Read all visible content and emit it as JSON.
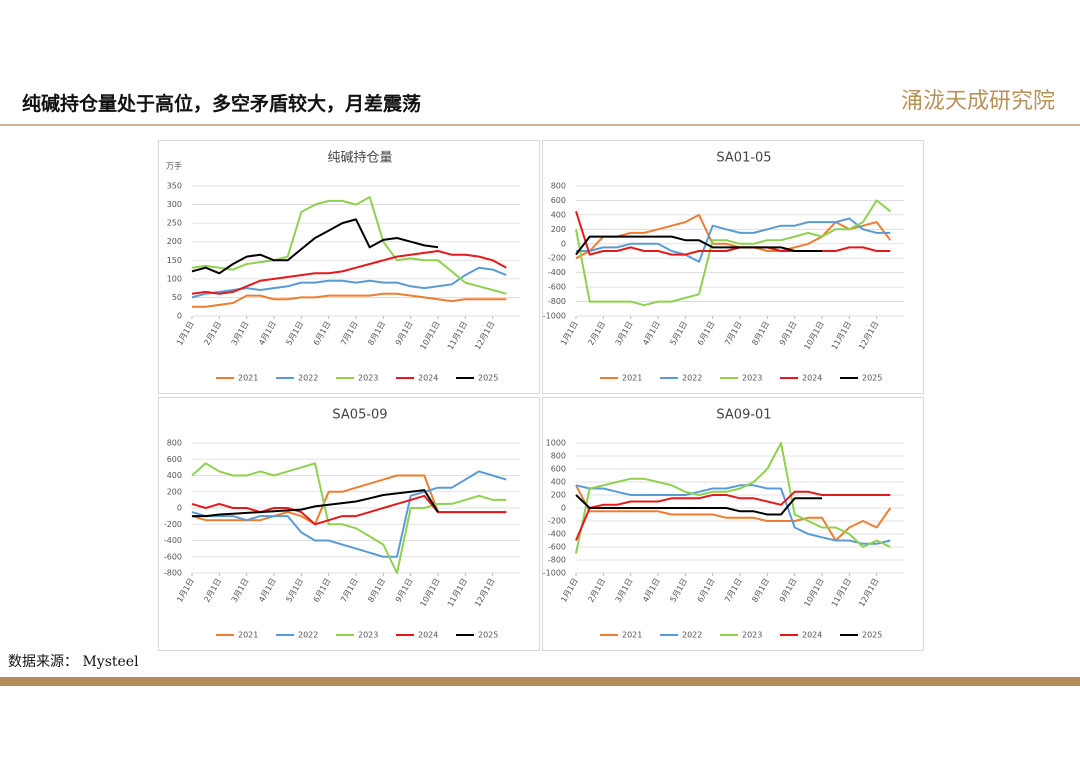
{
  "header": {
    "title": "纯碱持仓量处于高位，多空矛盾较大，月差震荡",
    "logo": "涌泷天成研究院"
  },
  "source": "数据来源： Mysteel",
  "chart_data": [
    {
      "type": "line",
      "title": "纯碱持仓量",
      "ylabel": "万手",
      "x": [
        1,
        1.5,
        2,
        2.5,
        3,
        3.5,
        4,
        4.5,
        5,
        5.5,
        6,
        6.5,
        7,
        7.5,
        8,
        8.5,
        9,
        9.5,
        10,
        10.5,
        11,
        11.5,
        12,
        12.5
      ],
      "xlim": [
        1,
        13
      ],
      "xticks": [
        {
          "value": 1,
          "label": "1月1日"
        },
        {
          "value": 2,
          "label": "2月1日"
        },
        {
          "value": 3,
          "label": "3月1日"
        },
        {
          "value": 4,
          "label": "4月1日"
        },
        {
          "value": 5,
          "label": "5月1日"
        },
        {
          "value": 6,
          "label": "6月1日"
        },
        {
          "value": 7,
          "label": "7月1日"
        },
        {
          "value": 8,
          "label": "8月1日"
        },
        {
          "value": 9,
          "label": "9月1日"
        },
        {
          "value": 10,
          "label": "10月1日"
        },
        {
          "value": 11,
          "label": "11月1日"
        },
        {
          "value": 12,
          "label": "12月1日"
        }
      ],
      "ylim": [
        0,
        350
      ],
      "yticks": [
        0,
        50,
        100,
        150,
        200,
        250,
        300,
        350
      ],
      "grid": true,
      "series": [
        {
          "name": "2021",
          "color": "#ed7d31",
          "values": [
            25,
            25,
            30,
            35,
            55,
            55,
            45,
            45,
            50,
            50,
            55,
            55,
            55,
            55,
            60,
            60,
            55,
            50,
            45,
            40,
            45,
            45,
            45,
            45
          ]
        },
        {
          "name": "2022",
          "color": "#5b9bd5",
          "values": [
            50,
            60,
            65,
            70,
            75,
            70,
            75,
            80,
            90,
            90,
            95,
            95,
            90,
            95,
            90,
            90,
            80,
            75,
            80,
            85,
            110,
            130,
            125,
            110
          ]
        },
        {
          "name": "2023",
          "color": "#8fd14f",
          "values": [
            130,
            135,
            130,
            125,
            140,
            145,
            150,
            160,
            280,
            300,
            310,
            310,
            300,
            320,
            200,
            150,
            155,
            150,
            150,
            120,
            90,
            80,
            70,
            60
          ]
        },
        {
          "name": "2024",
          "color": "#e31a1c",
          "values": [
            60,
            65,
            60,
            65,
            80,
            95,
            100,
            105,
            110,
            115,
            115,
            120,
            130,
            140,
            150,
            160,
            165,
            170,
            175,
            165,
            165,
            160,
            150,
            130
          ]
        },
        {
          "name": "2025",
          "color": "#000000",
          "values": [
            120,
            130,
            115,
            140,
            160,
            165,
            150,
            150,
            180,
            210,
            230,
            250,
            260,
            185,
            205,
            210,
            200,
            190,
            185,
            null,
            null,
            null,
            null,
            null
          ]
        }
      ]
    },
    {
      "type": "line",
      "title": "SA01-05",
      "x": [
        1,
        1.5,
        2,
        2.5,
        3,
        3.5,
        4,
        4.5,
        5,
        5.5,
        6,
        6.5,
        7,
        7.5,
        8,
        8.5,
        9,
        9.5,
        10,
        10.5,
        11,
        11.5,
        12,
        12.5
      ],
      "xlim": [
        1,
        13
      ],
      "xticks": [
        {
          "value": 1,
          "label": "1月1日"
        },
        {
          "value": 2,
          "label": "2月1日"
        },
        {
          "value": 3,
          "label": "3月1日"
        },
        {
          "value": 4,
          "label": "4月1日"
        },
        {
          "value": 5,
          "label": "5月1日"
        },
        {
          "value": 6,
          "label": "6月1日"
        },
        {
          "value": 7,
          "label": "7月1日"
        },
        {
          "value": 8,
          "label": "8月1日"
        },
        {
          "value": 9,
          "label": "9月1日"
        },
        {
          "value": 10,
          "label": "10月1日"
        },
        {
          "value": 11,
          "label": "11月1日"
        },
        {
          "value": 12,
          "label": "12月1日"
        }
      ],
      "ylim": [
        -1000,
        800
      ],
      "yticks": [
        -1000,
        -800,
        -600,
        -400,
        -200,
        0,
        200,
        400,
        600,
        800
      ],
      "grid": true,
      "series": [
        {
          "name": "2021",
          "color": "#ed7d31",
          "values": [
            -200,
            -100,
            100,
            100,
            150,
            150,
            200,
            250,
            300,
            400,
            0,
            0,
            -50,
            -50,
            -100,
            -100,
            -50,
            0,
            100,
            300,
            200,
            250,
            300,
            50
          ]
        },
        {
          "name": "2022",
          "color": "#5b9bd5",
          "values": [
            -100,
            -100,
            -50,
            -50,
            0,
            0,
            0,
            -100,
            -150,
            -250,
            250,
            200,
            150,
            150,
            200,
            250,
            250,
            300,
            300,
            300,
            350,
            200,
            150,
            150
          ]
        },
        {
          "name": "2023",
          "color": "#8fd14f",
          "values": [
            200,
            -800,
            -800,
            -800,
            -800,
            -850,
            -800,
            -800,
            -750,
            -700,
            50,
            50,
            0,
            0,
            50,
            50,
            100,
            150,
            100,
            200,
            200,
            300,
            600,
            450
          ]
        },
        {
          "name": "2024",
          "color": "#e31a1c",
          "values": [
            450,
            -150,
            -100,
            -100,
            -50,
            -100,
            -100,
            -150,
            -150,
            -100,
            -100,
            -100,
            -50,
            -50,
            -50,
            -100,
            -100,
            -100,
            -100,
            -100,
            -50,
            -50,
            -100,
            -100
          ]
        },
        {
          "name": "2025",
          "color": "#000000",
          "values": [
            -150,
            100,
            100,
            100,
            100,
            100,
            100,
            100,
            50,
            50,
            -50,
            -50,
            -50,
            -50,
            -50,
            -50,
            -100,
            -100,
            -100,
            null,
            null,
            null,
            null,
            null
          ]
        }
      ]
    },
    {
      "type": "line",
      "title": "SA05-09",
      "x": [
        1,
        1.5,
        2,
        2.5,
        3,
        3.5,
        4,
        4.5,
        5,
        5.5,
        6,
        6.5,
        7,
        7.5,
        8,
        8.5,
        9,
        9.5,
        10,
        10.5,
        11,
        11.5,
        12,
        12.5
      ],
      "xlim": [
        1,
        13
      ],
      "xticks": [
        {
          "value": 1,
          "label": "1月1日"
        },
        {
          "value": 2,
          "label": "2月1日"
        },
        {
          "value": 3,
          "label": "3月1日"
        },
        {
          "value": 4,
          "label": "4月1日"
        },
        {
          "value": 5,
          "label": "5月1日"
        },
        {
          "value": 6,
          "label": "6月1日"
        },
        {
          "value": 7,
          "label": "7月1日"
        },
        {
          "value": 8,
          "label": "8月1日"
        },
        {
          "value": 9,
          "label": "9月1日"
        },
        {
          "value": 10,
          "label": "10月1日"
        },
        {
          "value": 11,
          "label": "11月1日"
        },
        {
          "value": 12,
          "label": "12月1日"
        }
      ],
      "ylim": [
        -800,
        800
      ],
      "yticks": [
        -800,
        -600,
        -400,
        -200,
        0,
        200,
        400,
        600,
        800
      ],
      "grid": true,
      "series": [
        {
          "name": "2021",
          "color": "#ed7d31",
          "values": [
            -100,
            -150,
            -150,
            -150,
            -150,
            -150,
            -100,
            -50,
            -100,
            -200,
            200,
            200,
            250,
            300,
            350,
            400,
            400,
            400,
            -50,
            -50,
            -50,
            -50,
            -50,
            -50
          ]
        },
        {
          "name": "2022",
          "color": "#5b9bd5",
          "values": [
            -50,
            -100,
            -100,
            -100,
            -150,
            -100,
            -100,
            -100,
            -300,
            -400,
            -400,
            -450,
            -500,
            -550,
            -600,
            -600,
            150,
            200,
            250,
            250,
            350,
            450,
            400,
            350
          ]
        },
        {
          "name": "2023",
          "color": "#8fd14f",
          "values": [
            400,
            550,
            450,
            400,
            400,
            450,
            400,
            450,
            500,
            550,
            -200,
            -200,
            -250,
            -350,
            -450,
            -800,
            0,
            0,
            50,
            50,
            100,
            150,
            100,
            100
          ]
        },
        {
          "name": "2024",
          "color": "#e31a1c",
          "values": [
            50,
            0,
            50,
            0,
            0,
            -50,
            0,
            0,
            -50,
            -200,
            -150,
            -100,
            -100,
            -50,
            0,
            50,
            100,
            150,
            -50,
            -50,
            -50,
            -50,
            -50,
            -50
          ]
        },
        {
          "name": "2025",
          "color": "#000000",
          "values": [
            -100,
            -100,
            -80,
            -70,
            -60,
            -50,
            -40,
            -30,
            -20,
            20,
            40,
            60,
            80,
            120,
            160,
            180,
            200,
            220,
            -50,
            null,
            null,
            null,
            null,
            null
          ]
        }
      ]
    },
    {
      "type": "line",
      "title": "SA09-01",
      "x": [
        1,
        1.5,
        2,
        2.5,
        3,
        3.5,
        4,
        4.5,
        5,
        5.5,
        6,
        6.5,
        7,
        7.5,
        8,
        8.5,
        9,
        9.5,
        10,
        10.5,
        11,
        11.5,
        12,
        12.5
      ],
      "xlim": [
        1,
        13
      ],
      "xticks": [
        {
          "value": 1,
          "label": "1月1日"
        },
        {
          "value": 2,
          "label": "2月1日"
        },
        {
          "value": 3,
          "label": "3月1日"
        },
        {
          "value": 4,
          "label": "4月1日"
        },
        {
          "value": 5,
          "label": "5月1日"
        },
        {
          "value": 6,
          "label": "6月1日"
        },
        {
          "value": 7,
          "label": "7月1日"
        },
        {
          "value": 8,
          "label": "8月1日"
        },
        {
          "value": 9,
          "label": "9月1日"
        },
        {
          "value": 10,
          "label": "10月1日"
        },
        {
          "value": 11,
          "label": "11月1日"
        },
        {
          "value": 12,
          "label": "12月1日"
        }
      ],
      "ylim": [
        -1000,
        1000
      ],
      "yticks": [
        -1000,
        -800,
        -600,
        -400,
        -200,
        0,
        200,
        400,
        600,
        800,
        1000
      ],
      "grid": true,
      "series": [
        {
          "name": "2021",
          "color": "#ed7d31",
          "values": [
            350,
            -50,
            -50,
            -50,
            -50,
            -50,
            -50,
            -100,
            -100,
            -100,
            -100,
            -150,
            -150,
            -150,
            -200,
            -200,
            -200,
            -150,
            -150,
            -500,
            -300,
            -200,
            -300,
            0
          ]
        },
        {
          "name": "2022",
          "color": "#5b9bd5",
          "values": [
            350,
            300,
            300,
            250,
            200,
            200,
            200,
            200,
            200,
            250,
            300,
            300,
            350,
            350,
            300,
            300,
            -300,
            -400,
            -450,
            -500,
            -500,
            -550,
            -550,
            -500
          ]
        },
        {
          "name": "2023",
          "color": "#8fd14f",
          "values": [
            -700,
            300,
            350,
            400,
            450,
            450,
            400,
            350,
            250,
            200,
            250,
            250,
            300,
            400,
            600,
            1000,
            -100,
            -200,
            -300,
            -300,
            -400,
            -600,
            -500,
            -600
          ]
        },
        {
          "name": "2024",
          "color": "#e31a1c",
          "values": [
            -500,
            0,
            50,
            50,
            100,
            100,
            100,
            150,
            150,
            150,
            200,
            200,
            150,
            150,
            100,
            50,
            250,
            250,
            200,
            200,
            200,
            200,
            200,
            200
          ]
        },
        {
          "name": "2025",
          "color": "#000000",
          "values": [
            200,
            0,
            0,
            0,
            0,
            0,
            0,
            0,
            0,
            0,
            0,
            0,
            -50,
            -50,
            -100,
            -100,
            150,
            150,
            150,
            null,
            null,
            null,
            null,
            null
          ]
        }
      ]
    }
  ]
}
